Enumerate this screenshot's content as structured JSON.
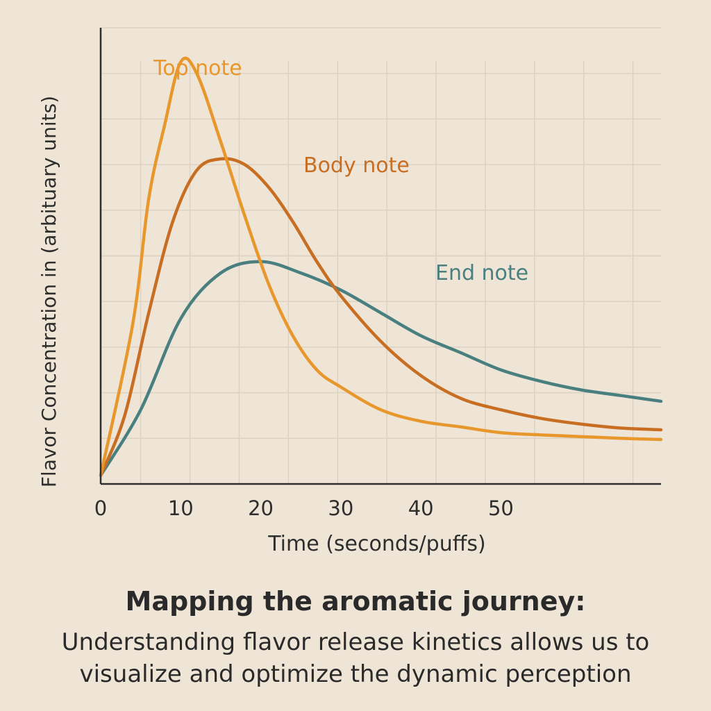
{
  "caption": {
    "title": "Mapping the aromatic journey:",
    "body": "Understanding flavor release kinetics allows us to visualize and optimize the dynamic perception"
  },
  "chart_data": {
    "type": "line",
    "title": "",
    "xlabel": "Time (seconds/puffs)",
    "ylabel": "Flavor Concentration in (arbituary units)",
    "xlim": [
      0,
      70
    ],
    "ylim": [
      0,
      80
    ],
    "xticks": [
      0,
      10,
      20,
      30,
      40,
      50
    ],
    "grid": true,
    "series": [
      {
        "name": "Top note",
        "color": "#e8972d",
        "x": [
          0,
          4,
          6,
          8,
          10,
          12,
          15,
          18,
          21,
          24,
          27,
          30,
          35,
          40,
          45,
          50,
          55,
          60,
          65,
          70
        ],
        "y": [
          1.5,
          28,
          50,
          63,
          74,
          72,
          60,
          47,
          35,
          26,
          20,
          17,
          13,
          11,
          10,
          9,
          8.6,
          8.3,
          8.0,
          7.8
        ]
      },
      {
        "name": "Body note",
        "color": "#c86e22",
        "x": [
          0,
          3,
          6,
          9,
          12,
          15,
          18,
          21,
          24,
          27,
          30,
          35,
          40,
          45,
          50,
          55,
          60,
          65,
          70
        ],
        "y": [
          1.5,
          12,
          30,
          46,
          55,
          57,
          56,
          52,
          46,
          39,
          33,
          25,
          19,
          15,
          13,
          11.5,
          10.5,
          9.8,
          9.5
        ]
      },
      {
        "name": "End note",
        "color": "#4a7f7f",
        "x": [
          0,
          5,
          10,
          15,
          20,
          25,
          30,
          35,
          40,
          45,
          50,
          55,
          60,
          65,
          70
        ],
        "y": [
          1.5,
          13,
          29,
          37,
          39,
          37,
          34,
          30,
          26,
          23,
          20,
          18,
          16.5,
          15.5,
          14.5
        ]
      }
    ]
  }
}
